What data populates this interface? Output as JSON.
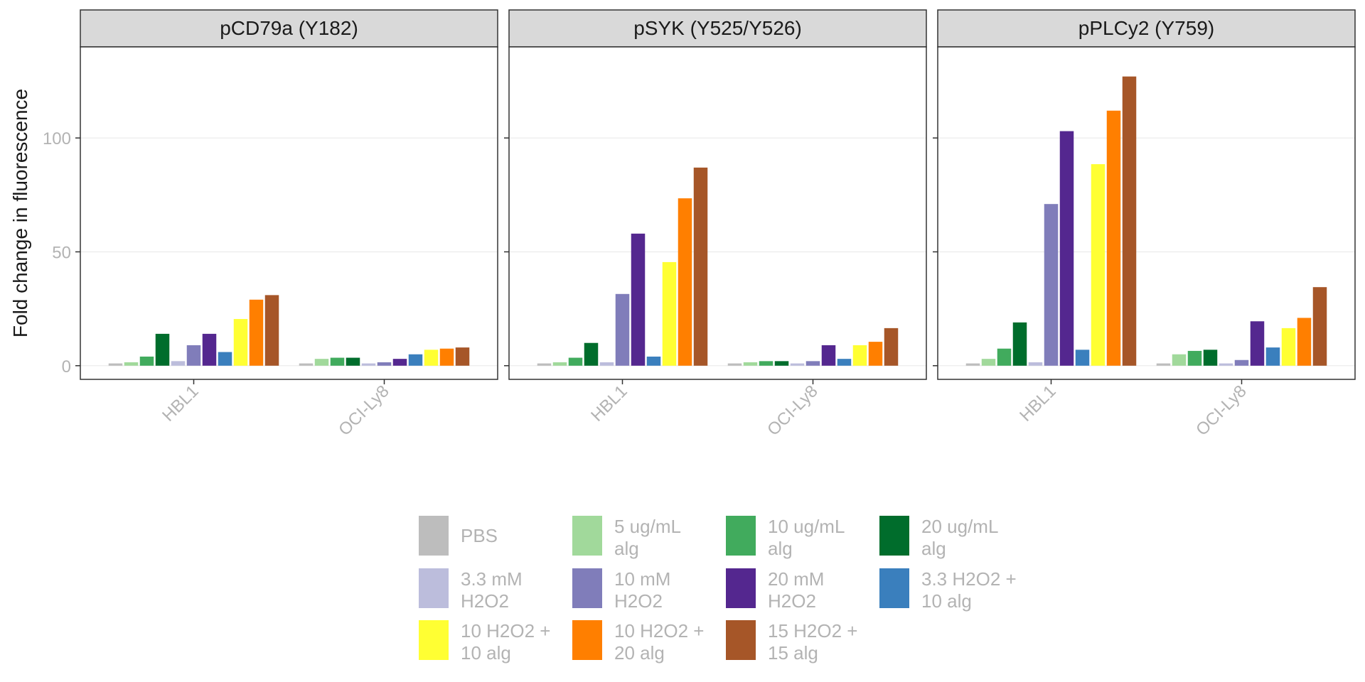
{
  "chart_data": {
    "type": "bar",
    "ylabel": "Fold change in fluorescence",
    "xlabel": "",
    "ylim": [
      -6,
      140
    ],
    "yticks": [
      0,
      50,
      100
    ],
    "grid": true,
    "legend_position": "bottom",
    "categories": [
      "HBL1",
      "OCI-Ly8"
    ],
    "series": [
      {
        "name": "PBS",
        "label_lines": [
          "PBS"
        ],
        "color": "#bdbdbd"
      },
      {
        "name": "5 ug/mL alg",
        "label_lines": [
          "5 ug/mL",
          "alg"
        ],
        "color": "#a1d99b"
      },
      {
        "name": "10 ug/mL alg",
        "label_lines": [
          "10 ug/mL",
          "alg"
        ],
        "color": "#41ab5d"
      },
      {
        "name": "20 ug/mL alg",
        "label_lines": [
          "20 ug/mL",
          "alg"
        ],
        "color": "#006d2c"
      },
      {
        "name": "3.3 mM H2O2",
        "label_lines": [
          "3.3 mM",
          "H2O2"
        ],
        "color": "#bcbddc"
      },
      {
        "name": "10 mM H2O2",
        "label_lines": [
          "10 mM",
          "H2O2"
        ],
        "color": "#807dba"
      },
      {
        "name": "20 mM H2O2",
        "label_lines": [
          "20 mM",
          "H2O2"
        ],
        "color": "#54278f"
      },
      {
        "name": "3.3 H2O2 + 10 alg",
        "label_lines": [
          "3.3 H2O2 +",
          "10 alg"
        ],
        "color": "#3a7fbd"
      },
      {
        "name": "10 H2O2 + 10 alg",
        "label_lines": [
          "10 H2O2 +",
          "10 alg"
        ],
        "color": "#ffff33"
      },
      {
        "name": "10 H2O2 + 20 alg",
        "label_lines": [
          "10 H2O2 +",
          "20 alg"
        ],
        "color": "#ff7f00"
      },
      {
        "name": "15 H2O2 + 15 alg",
        "label_lines": [
          "15 H2O2 +",
          "15 alg"
        ],
        "color": "#a65628"
      }
    ],
    "panels": [
      {
        "title": "pCD79a (Y182)",
        "values": {
          "HBL1": [
            1,
            1.5,
            4,
            14,
            2,
            9,
            14,
            6,
            20.5,
            29,
            31
          ],
          "OCI-Ly8": [
            1,
            3,
            3.5,
            3.5,
            1,
            1.5,
            3,
            5,
            7,
            7.5,
            8
          ]
        }
      },
      {
        "title": "pSYK (Y525/Y526)",
        "values": {
          "HBL1": [
            1,
            1.5,
            3.5,
            10,
            1.5,
            31.5,
            58,
            4,
            45.5,
            73.5,
            87
          ],
          "OCI-Ly8": [
            1,
            1.5,
            2,
            2,
            1,
            2,
            9,
            3,
            9,
            10.5,
            16.5
          ]
        }
      },
      {
        "title": "pPLCy2 (Y759)",
        "values": {
          "HBL1": [
            1,
            3,
            7.5,
            19,
            1.5,
            71,
            103,
            7,
            88.5,
            112,
            127
          ],
          "OCI-Ly8": [
            1,
            5,
            6.5,
            7,
            1,
            2.5,
            19.5,
            8,
            16.5,
            21,
            34.5
          ]
        }
      }
    ]
  }
}
